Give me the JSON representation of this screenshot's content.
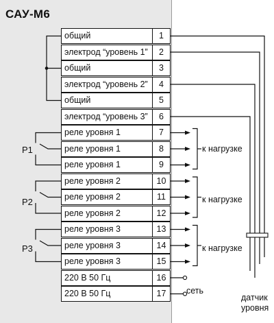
{
  "title": "САУ-М6",
  "terminals": [
    {
      "num": "1",
      "label": "общий"
    },
    {
      "num": "2",
      "label": "электрод “уровень 1”"
    },
    {
      "num": "3",
      "label": "общий"
    },
    {
      "num": "4",
      "label": "электрод “уровень 2”"
    },
    {
      "num": "5",
      "label": "общий"
    },
    {
      "num": "6",
      "label": "электрод “уровень 3”"
    },
    {
      "num": "7",
      "label": "реле уровня 1"
    },
    {
      "num": "8",
      "label": "реле уровня 1"
    },
    {
      "num": "9",
      "label": "реле уровня 1"
    },
    {
      "num": "10",
      "label": "реле уровня 2"
    },
    {
      "num": "11",
      "label": "реле уровня 2"
    },
    {
      "num": "12",
      "label": "реле уровня 2"
    },
    {
      "num": "13",
      "label": "реле уровня 3"
    },
    {
      "num": "14",
      "label": "реле уровня 3"
    },
    {
      "num": "15",
      "label": "реле уровня 3"
    },
    {
      "num": "16",
      "label": "220 В  50 Гц"
    },
    {
      "num": "17",
      "label": "220 В  50 Гц"
    }
  ],
  "relays": [
    "Р1",
    "Р2",
    "Р3"
  ],
  "load_label": "к нагрузке",
  "network_label": "сеть",
  "sensor_label_1": "датчик",
  "sensor_label_2": "уровня"
}
